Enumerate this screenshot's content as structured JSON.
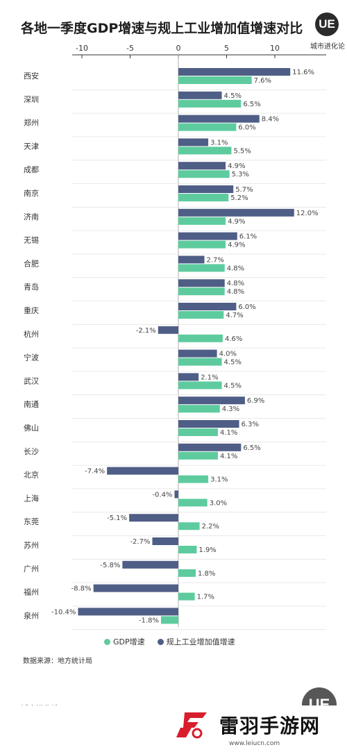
{
  "title": "各地一季度GDP增速与规上工业增加值增速对比",
  "logo": {
    "mark": "UE",
    "name": "城市进化论"
  },
  "colors": {
    "gdp": "#5ecb9e",
    "industry": "#4f5e86",
    "axis": "#333333",
    "grid": "#cccccc"
  },
  "chart_data": {
    "type": "bar",
    "orientation": "horizontal",
    "xlim": [
      -12,
      15
    ],
    "x_ticks": [
      "-10",
      "-5",
      "0",
      "5",
      "10"
    ],
    "x_tick_values": [
      -10,
      -5,
      0,
      5,
      10
    ],
    "grid": false,
    "legend_position": "bottom",
    "categories": [
      "西安",
      "深圳",
      "郑州",
      "天津",
      "成都",
      "南京",
      "济南",
      "无锡",
      "合肥",
      "青岛",
      "重庆",
      "杭州",
      "宁波",
      "武汉",
      "南通",
      "佛山",
      "长沙",
      "北京",
      "上海",
      "东莞",
      "苏州",
      "广州",
      "福州",
      "泉州"
    ],
    "series": [
      {
        "name": "规上工业增加值增速",
        "color_key": "industry",
        "values": [
          11.6,
          4.5,
          8.4,
          3.1,
          4.9,
          5.7,
          12.0,
          6.1,
          2.7,
          4.8,
          6.0,
          -2.1,
          4.0,
          2.1,
          6.9,
          6.3,
          6.5,
          -7.4,
          -0.4,
          -5.1,
          -2.7,
          -5.8,
          -8.8,
          -10.4
        ],
        "labels": [
          "11.6%",
          "4.5%",
          "8.4%",
          "3.1%",
          "4.9%",
          "5.7%",
          "12.0%",
          "6.1%",
          "2.7%",
          "4.8%",
          "6.0%",
          "-2.1%",
          "4.0%",
          "2.1%",
          "6.9%",
          "6.3%",
          "6.5%",
          "-7.4%",
          "-0.4%",
          "-5.1%",
          "-2.7%",
          "-5.8%",
          "-8.8%",
          "-10.4%"
        ]
      },
      {
        "name": "GDP增速",
        "color_key": "gdp",
        "values": [
          7.6,
          6.5,
          6.0,
          5.5,
          5.3,
          5.2,
          4.9,
          4.9,
          4.8,
          4.8,
          4.7,
          4.6,
          4.5,
          4.5,
          4.3,
          4.1,
          4.1,
          3.1,
          3.0,
          2.2,
          1.9,
          1.8,
          1.7,
          -1.8
        ],
        "labels": [
          "7.6%",
          "6.5%",
          "6.0%",
          "5.5%",
          "5.3%",
          "5.2%",
          "4.9%",
          "4.9%",
          "4.8%",
          "4.8%",
          "4.7%",
          "4.6%",
          "4.5%",
          "4.5%",
          "4.3%",
          "4.1%",
          "4.1%",
          "3.1%",
          "3.0%",
          "2.2%",
          "1.9%",
          "1.8%",
          "1.7%",
          "-1.8%"
        ]
      }
    ]
  },
  "legend": {
    "gdp": "GDP增速",
    "industry": "规上工业增加值增速"
  },
  "source": "数据来源：地方统计局",
  "footer_brand": "城市进化论",
  "watermark": {
    "name": "雷羽手游网",
    "url": "www.leiucn.com"
  }
}
